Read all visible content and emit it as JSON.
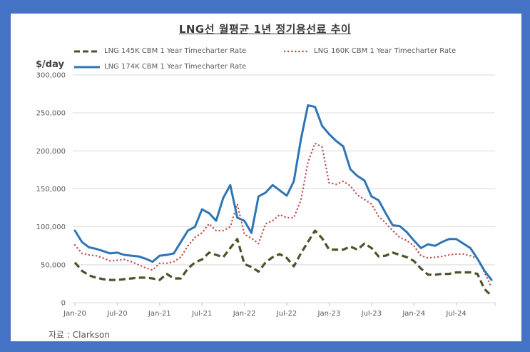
{
  "title": "LNG선 월평균 1년 정기용선료 추이",
  "source": "자료 : Clarkson",
  "colors": {
    "frame": "#4472c4",
    "series_174k": "#2e75b6",
    "series_160k": "#c0504d",
    "series_145k": "#4f5228",
    "grid": "#d9d9d9"
  },
  "chart_data": {
    "type": "line",
    "title": "LNG선 월평균 1년 정기용선료 추이",
    "xlabel": "",
    "ylabel": "$/day",
    "ylim": [
      0,
      300000
    ],
    "yticks": [
      0,
      50000,
      100000,
      150000,
      200000,
      250000,
      300000
    ],
    "ytick_labels": [
      "0",
      "50,000",
      "100,000",
      "150,000",
      "200,000",
      "250,000",
      "300,000"
    ],
    "xtick_labels": [
      "Jan-20",
      "Jul-20",
      "Jan-21",
      "Jul-21",
      "Jan-22",
      "Jul-22",
      "Jan-23",
      "Jul-23",
      "Jan-24",
      "Jul-24"
    ],
    "x_start": "Jan-20",
    "x_end": "Dec-24",
    "x_frequency": "monthly",
    "grid": "horizontal",
    "legend_position": "top",
    "series": [
      {
        "name": "LNG 145K CBM 1 Year Timecharter Rate",
        "style": "dashed",
        "values": [
          53000,
          42000,
          36000,
          33000,
          31000,
          30000,
          30000,
          31000,
          32000,
          33000,
          33000,
          32000,
          30000,
          38000,
          32000,
          32000,
          45000,
          53000,
          57000,
          66000,
          63000,
          60000,
          72000,
          84000,
          51000,
          47000,
          41000,
          53000,
          60000,
          64000,
          59000,
          48000,
          65000,
          80000,
          95000,
          85000,
          70000,
          70000,
          70000,
          74000,
          70000,
          78000,
          72000,
          61000,
          62000,
          66000,
          63000,
          60000,
          55000,
          45000,
          37000,
          37000,
          38000,
          38000,
          40000,
          40000,
          40000,
          38000,
          18000,
          9000
        ]
      },
      {
        "name": "LNG 160K CBM 1 Year Timecharter Rate",
        "style": "dotted",
        "values": [
          76000,
          65000,
          63000,
          62000,
          59000,
          55000,
          56000,
          57000,
          54000,
          50000,
          46000,
          43000,
          52000,
          52000,
          54000,
          60000,
          75000,
          86000,
          92000,
          104000,
          95000,
          95000,
          100000,
          130000,
          90000,
          85000,
          78000,
          104000,
          108000,
          116000,
          112000,
          112000,
          135000,
          185000,
          210000,
          205000,
          158000,
          156000,
          160000,
          154000,
          142000,
          136000,
          130000,
          114000,
          105000,
          95000,
          86000,
          82000,
          75000,
          62000,
          59000,
          60000,
          61000,
          63000,
          64000,
          64000,
          62000,
          58000,
          40000,
          20000
        ]
      },
      {
        "name": "LNG 174K CBM 1 Year Timecharter Rate",
        "style": "solid",
        "values": [
          95000,
          80000,
          73000,
          71000,
          68000,
          65000,
          66000,
          63000,
          62000,
          61000,
          58000,
          54000,
          62000,
          63000,
          65000,
          80000,
          95000,
          100000,
          123000,
          118000,
          108000,
          138000,
          155000,
          112000,
          108000,
          92000,
          140000,
          145000,
          155000,
          148000,
          141000,
          160000,
          215000,
          260000,
          258000,
          233000,
          222000,
          213000,
          206000,
          176000,
          167000,
          161000,
          140000,
          135000,
          118000,
          102000,
          101000,
          93000,
          82000,
          72000,
          77000,
          75000,
          80000,
          84000,
          84000,
          78000,
          72000,
          58000,
          42000,
          30000
        ]
      }
    ]
  }
}
